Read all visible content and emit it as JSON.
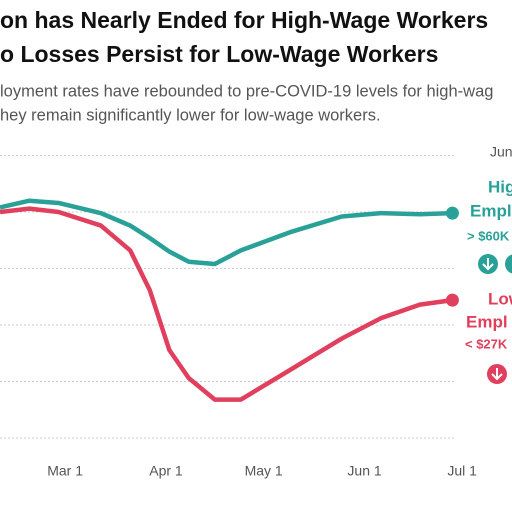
{
  "chart_data": {
    "type": "line",
    "title_lines": [
      "on has Nearly Ended for High-Wage Workers",
      "o Losses Persist for Low-Wage Workers"
    ],
    "subtitle_lines": [
      "loyment rates have rebounded to pre-COVID-19 levels for high-wag",
      "hey remain significantly lower for low-wage workers."
    ],
    "top_label": "Jun",
    "x": [
      41,
      50,
      59,
      72,
      81,
      87,
      93,
      99,
      107,
      115,
      130,
      146,
      158,
      170,
      180
    ],
    "xlim": [
      41,
      198
    ],
    "xticks": [
      {
        "value": 61,
        "label": "Mar 1"
      },
      {
        "value": 92,
        "label": "Apr 1"
      },
      {
        "value": 122,
        "label": "May 1"
      },
      {
        "value": 153,
        "label": "Jun 1"
      },
      {
        "value": 183,
        "label": "Jul 1"
      }
    ],
    "ylim": [
      -21,
      6
    ],
    "yticks": [
      5,
      0,
      -5,
      -10,
      -15,
      -20
    ],
    "grid": true,
    "series": [
      {
        "name": "Hig",
        "name_line2": "Empl",
        "note": "> $60K",
        "color": "#2aa198",
        "values": [
          0.4,
          1.0,
          0.8,
          -0.1,
          -1.2,
          -2.3,
          -3.5,
          -4.4,
          -4.6,
          -3.4,
          -1.8,
          -0.4,
          -0.1,
          -0.2,
          -0.1
        ]
      },
      {
        "name": "Low",
        "name_line2": "Empl",
        "note": "< $27K",
        "color": "#e0405e",
        "values": [
          0,
          0.3,
          0,
          -1.2,
          -3.4,
          -6.9,
          -12.2,
          -14.7,
          -16.6,
          -16.6,
          -14.0,
          -11.2,
          -9.4,
          -8.2,
          -7.8
        ]
      }
    ]
  }
}
